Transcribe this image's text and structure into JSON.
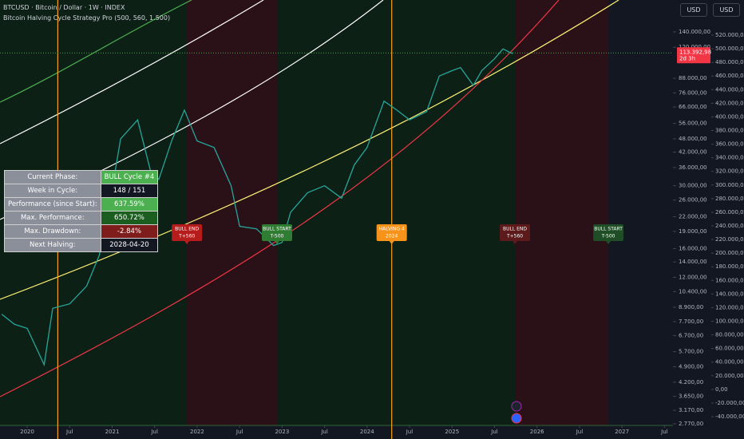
{
  "header": {
    "symbol": "BTCUSD · Bitcoin / Dollar · 1W · INDEX",
    "indicator": "Bitcoin Halving Cycle Strategy Pro (500, 560, 1.500)",
    "currency_buttons": [
      "USD",
      "USD"
    ]
  },
  "table": {
    "rows": [
      [
        "Current Phase:",
        "BULL Cycle #4"
      ],
      [
        "Week in Cycle:",
        "148 / 151"
      ],
      [
        "Performance (since Start):",
        "637.59%"
      ],
      [
        "Max. Performance:",
        "650.72%"
      ],
      [
        "Max. Drawdown:",
        "-2.84%"
      ],
      [
        "Next Halving:",
        "2028-04-20"
      ]
    ],
    "value_colors": [
      "#4caf50",
      "#131722",
      "#4caf50",
      "#1b5e20",
      "#7f1d1d",
      "#131722"
    ]
  },
  "chart_data": {
    "type": "line",
    "log_scale": true,
    "color": "#26a69a",
    "x": [
      2019.7,
      2019.85,
      2020.0,
      2020.2,
      2020.3,
      2020.5,
      2020.7,
      2020.85,
      2021.0,
      2021.1,
      2021.3,
      2021.45,
      2021.55,
      2021.7,
      2021.85,
      2022.0,
      2022.2,
      2022.4,
      2022.5,
      2022.7,
      2022.9,
      2023.0,
      2023.1,
      2023.3,
      2023.5,
      2023.7,
      2023.85,
      2024.0,
      2024.2,
      2024.35,
      2024.5,
      2024.7,
      2024.85,
      2025.0,
      2025.1,
      2025.25,
      2025.35,
      2025.5,
      2025.6,
      2025.7,
      2025.72
    ],
    "values": [
      8300,
      7500,
      7200,
      5000,
      8800,
      9200,
      11000,
      15000,
      29000,
      48000,
      58000,
      35000,
      32000,
      47000,
      64000,
      47000,
      44000,
      30000,
      20000,
      19500,
      16500,
      17000,
      23000,
      28000,
      30000,
      26500,
      37000,
      44000,
      70000,
      64000,
      58000,
      63000,
      90000,
      95000,
      98000,
      82000,
      95000,
      107000,
      118000,
      113000,
      113392.98
    ],
    "xlim": [
      2019.68,
      2027.6
    ],
    "xticks": [
      {
        "value": 2020,
        "label": "2020"
      },
      {
        "value": 2020.5,
        "label": "Jul"
      },
      {
        "value": 2021,
        "label": "2021"
      },
      {
        "value": 2021.5,
        "label": "Jul"
      },
      {
        "value": 2022,
        "label": "2022"
      },
      {
        "value": 2022.5,
        "label": "Jul"
      },
      {
        "value": 2023,
        "label": "2023"
      },
      {
        "value": 2023.5,
        "label": "Jul"
      },
      {
        "value": 2024,
        "label": "2024"
      },
      {
        "value": 2024.5,
        "label": "Jul"
      },
      {
        "value": 2025,
        "label": "2025"
      },
      {
        "value": 2025.5,
        "label": "Jul"
      },
      {
        "value": 2026,
        "label": "2026"
      },
      {
        "value": 2026.5,
        "label": "Jul"
      },
      {
        "value": 2027,
        "label": "2027"
      },
      {
        "value": 2027.5,
        "label": "Jul"
      }
    ],
    "ylim": [
      2725,
      192600
    ],
    "yticks": [
      {
        "value": 140000,
        "label": "140.000,00"
      },
      {
        "value": 120000,
        "label": "120.000,00"
      },
      {
        "value": 88000,
        "label": "88.000,00"
      },
      {
        "value": 76000,
        "label": "76.000,00"
      },
      {
        "value": 66000,
        "label": "66.000,00"
      },
      {
        "value": 56000,
        "label": "56.000,00"
      },
      {
        "value": 48000,
        "label": "48.000,00"
      },
      {
        "value": 42000,
        "label": "42.000,00"
      },
      {
        "value": 36000,
        "label": "36.000,00"
      },
      {
        "value": 30000,
        "label": "30.000,00"
      },
      {
        "value": 26000,
        "label": "26.000,00"
      },
      {
        "value": 22000,
        "label": "22.000,00"
      },
      {
        "value": 19000,
        "label": "19.000,00"
      },
      {
        "value": 16000,
        "label": "16.000,00"
      },
      {
        "value": 14000,
        "label": "14.000,00"
      },
      {
        "value": 12000,
        "label": "12.000,00"
      },
      {
        "value": 10400,
        "label": "10.400,00"
      },
      {
        "value": 8900,
        "label": "8.900,00"
      },
      {
        "value": 7700,
        "label": "7.700,00"
      },
      {
        "value": 6700,
        "label": "6.700,00"
      },
      {
        "value": 5700,
        "label": "5.700,00"
      },
      {
        "value": 4900,
        "label": "4.900,00"
      },
      {
        "value": 4200,
        "label": "4.200,00"
      },
      {
        "value": 3650,
        "label": "3.650,00"
      },
      {
        "value": 3170,
        "label": "3.170,00"
      },
      {
        "value": 2770,
        "label": "2.770,00"
      }
    ],
    "y2lim": [
      -52890,
      571550
    ],
    "y2ticks": [
      {
        "value": 520000,
        "label": "520.000,00"
      },
      {
        "value": 500000,
        "label": "500.000,00"
      },
      {
        "value": 480000,
        "label": "480.000,00"
      },
      {
        "value": 460000,
        "label": "460.000,00"
      },
      {
        "value": 440000,
        "label": "440.000,00"
      },
      {
        "value": 420000,
        "label": "420.000,00"
      },
      {
        "value": 400000,
        "label": "400.000,00"
      },
      {
        "value": 380000,
        "label": "380.000,00"
      },
      {
        "value": 360000,
        "label": "360.000,00"
      },
      {
        "value": 340000,
        "label": "340.000,00"
      },
      {
        "value": 320000,
        "label": "320.000,00"
      },
      {
        "value": 300000,
        "label": "300.000,00"
      },
      {
        "value": 280000,
        "label": "280.000,00"
      },
      {
        "value": 260000,
        "label": "260.000,00"
      },
      {
        "value": 240000,
        "label": "240.000,00"
      },
      {
        "value": 220000,
        "label": "220.000,00"
      },
      {
        "value": 200000,
        "label": "200.000,00"
      },
      {
        "value": 180000,
        "label": "180.000,00"
      },
      {
        "value": 160000,
        "label": "160.000,00"
      },
      {
        "value": 140000,
        "label": "140.000,00"
      },
      {
        "value": 120000,
        "label": "120.000,00"
      },
      {
        "value": 100000,
        "label": "100.000,00"
      },
      {
        "value": 80000,
        "label": "80.000,00"
      },
      {
        "value": 60000,
        "label": "60.000,00"
      },
      {
        "value": 40000,
        "label": "40.000,00"
      },
      {
        "value": 20000,
        "label": "20.000,00"
      },
      {
        "value": 0,
        "label": "0,00"
      },
      {
        "value": -20000,
        "label": "-20.000,00"
      },
      {
        "value": -40000,
        "label": "-40.000,00"
      }
    ],
    "regions": [
      {
        "x0": 2019.68,
        "x1": 2021.88,
        "color": "#0d2016"
      },
      {
        "x0": 2021.88,
        "x1": 2022.94,
        "color": "#2a1118"
      },
      {
        "x0": 2022.94,
        "x1": 2025.74,
        "color": "#0d2016"
      },
      {
        "x0": 2025.74,
        "x1": 2026.84,
        "color": "#2a1118"
      }
    ],
    "halving_lines": [
      2020.36,
      2024.29
    ],
    "halving_color": "#f7a21b",
    "last_price": {
      "value": 113392.98,
      "label": "113.392,98"
    },
    "countdown": "2d 3h",
    "annotations": [
      {
        "x": 2021.88,
        "line1": "BULL END",
        "line2": "T+560",
        "color": "#b71c1c"
      },
      {
        "x": 2022.94,
        "line1": "BULL START",
        "line2": "T-500",
        "color": "#2e7d32"
      },
      {
        "x": 2024.29,
        "line1": "HALVING 4",
        "line2": "2024",
        "color": "#f7931a"
      },
      {
        "x": 2025.74,
        "line1": "BULL END",
        "line2": "T+560",
        "color": "#5d1a1a"
      },
      {
        "x": 2026.84,
        "line1": "BULL START",
        "line2": "T-500",
        "color": "#1f4d25"
      }
    ]
  }
}
